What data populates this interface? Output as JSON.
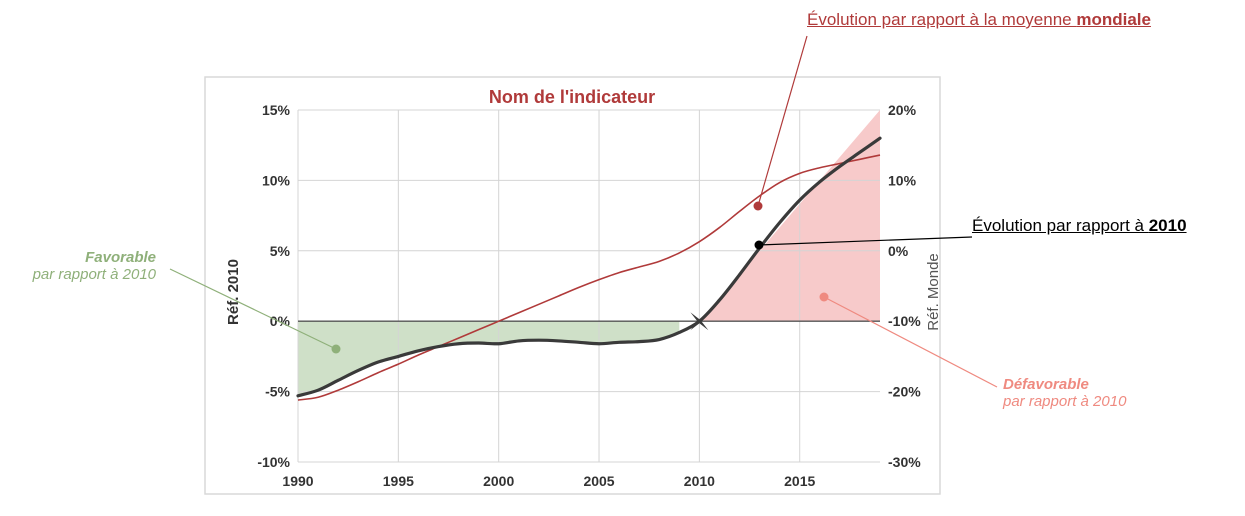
{
  "chart_data": {
    "type": "line",
    "title": "Nom de l'indicateur",
    "ylabel_left": "Réf. 2010",
    "ylabel_right": "Réf. Monde",
    "xlim": [
      1990,
      2019
    ],
    "x_ticks": [
      1990,
      1995,
      2000,
      2005,
      2010,
      2015
    ],
    "x_tick_labels": [
      "1990",
      "1995",
      "2000",
      "2005",
      "2010",
      "2015"
    ],
    "ylim_left": [
      -10,
      15
    ],
    "ylim_right": [
      -30,
      20
    ],
    "left_ticks": [
      15,
      10,
      5,
      0,
      -5,
      -10
    ],
    "left_tick_labels": [
      "15%",
      "10%",
      "5%",
      "0%",
      "-5%",
      "-10%"
    ],
    "right_ticks": [
      20,
      10,
      0,
      -10,
      -20,
      -30
    ],
    "right_tick_labels": [
      "20%",
      "10%",
      "0%",
      "-10%",
      "-20%",
      "-30%"
    ],
    "grid": true,
    "series": [
      {
        "axis": "left",
        "color": "#3a3a3a",
        "x": [
          1990,
          1991,
          1992,
          1993,
          1994,
          1995,
          1996,
          1997,
          1998,
          1999,
          2000,
          2001,
          2002,
          2003,
          2004,
          2005,
          2006,
          2007,
          2008,
          2009,
          2010,
          2011,
          2012,
          2013,
          2014,
          2015,
          2016,
          2017,
          2018,
          2019
        ],
        "y": [
          -5.3,
          -4.9,
          -4.2,
          -3.5,
          -2.9,
          -2.5,
          -2.1,
          -1.8,
          -1.6,
          -1.55,
          -1.6,
          -1.4,
          -1.35,
          -1.4,
          -1.5,
          -1.6,
          -1.5,
          -1.45,
          -1.3,
          -0.8,
          0,
          1.5,
          3.3,
          5.2,
          7.0,
          8.6,
          9.9,
          11.0,
          12.0,
          13.0
        ]
      },
      {
        "axis": "right",
        "color": "#b03a3a",
        "x": [
          1990,
          1991,
          1992,
          1993,
          1994,
          1995,
          1996,
          1997,
          1998,
          1999,
          2000,
          2001,
          2002,
          2003,
          2004,
          2005,
          2006,
          2007,
          2008,
          2009,
          2010,
          2011,
          2012,
          2013,
          2014,
          2015,
          2016,
          2017,
          2018,
          2019
        ],
        "y": [
          -21.2,
          -20.8,
          -19.8,
          -18.6,
          -17.3,
          -16.1,
          -14.8,
          -13.6,
          -12.4,
          -11.2,
          -10.0,
          -8.8,
          -7.6,
          -6.4,
          -5.2,
          -4.1,
          -3.1,
          -2.3,
          -1.5,
          -0.3,
          1.3,
          3.3,
          5.6,
          7.8,
          9.7,
          11.0,
          11.8,
          12.4,
          13.0,
          13.6
        ]
      }
    ],
    "fill_favorable": {
      "color": "#cfe0c8",
      "x_from": 1990,
      "x_to": 2009
    },
    "fill_defavorable": {
      "color": "#f7caca",
      "x_from": 2010,
      "x_to": 2019
    },
    "reference_point": {
      "x": 2010,
      "y": 0
    }
  },
  "annotations": {
    "world": {
      "text_prefix": "Évolution par rapport à la moyenne ",
      "text_bold": "mondiale",
      "color": "#b03a3a"
    },
    "ref2010": {
      "text_prefix": "Évolution par rapport à ",
      "text_bold": "2010",
      "color": "#000000"
    },
    "favorable": {
      "line1": "Favorable",
      "line2": "par rapport à 2010",
      "color": "#8fb07a"
    },
    "defavorable": {
      "line1": "Défavorable",
      "line2": "par rapport à 2010",
      "color": "#ef8a80"
    }
  }
}
